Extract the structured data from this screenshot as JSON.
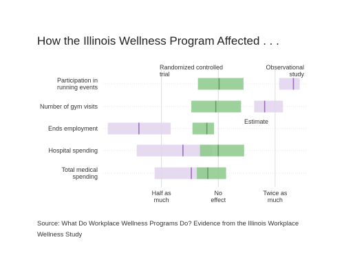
{
  "title": "How the Illinois Wellness Program Affected . . .",
  "source": "Source: What Do Workplace Wellness Programs Do? Evidence from the Illinois Workplace Wellness Study",
  "colors": {
    "rct": "#8cc98a",
    "observational": "#e2d6ee",
    "rct_estimate": "#6a9a68",
    "observational_estimate": "#9a70b8",
    "gridline": "#dcdcdc"
  },
  "chart_data": {
    "type": "range",
    "x_scale": "log2",
    "xlim": [
      0.25,
      2.8
    ],
    "ticks": [
      {
        "value": 0.5,
        "label_lines": [
          "Half as",
          "much"
        ]
      },
      {
        "value": 1,
        "label_lines": [
          "No",
          "effect"
        ]
      },
      {
        "value": 2,
        "label_lines": [
          "Twice as",
          "much"
        ]
      }
    ],
    "annotations": {
      "rct": [
        "Randomized controlled",
        "trial"
      ],
      "observational": [
        "Observational",
        "study"
      ],
      "estimate": "Estimate"
    },
    "categories": [
      {
        "label_lines": [
          "Participation in",
          "running events"
        ]
      },
      {
        "label_lines": [
          "Number of gym visits"
        ]
      },
      {
        "label_lines": [
          "Ends employment"
        ]
      },
      {
        "label_lines": [
          "Hospital spending"
        ]
      },
      {
        "label_lines": [
          "Total medical",
          "spending"
        ]
      }
    ],
    "series": [
      {
        "name": "Randomized controlled trial",
        "low": [
          0.78,
          0.72,
          0.73,
          0.8,
          0.77
        ],
        "estimate": [
          1.01,
          0.97,
          0.87,
          1.0,
          0.88
        ],
        "high": [
          1.36,
          1.32,
          0.95,
          1.37,
          1.1
        ]
      },
      {
        "name": "Observational study",
        "low": [
          2.1,
          1.55,
          0.26,
          0.37,
          0.46
        ],
        "estimate": [
          2.5,
          1.76,
          0.38,
          0.65,
          0.72
        ],
        "high": [
          2.7,
          2.2,
          0.56,
          0.93,
          0.89
        ]
      }
    ]
  }
}
